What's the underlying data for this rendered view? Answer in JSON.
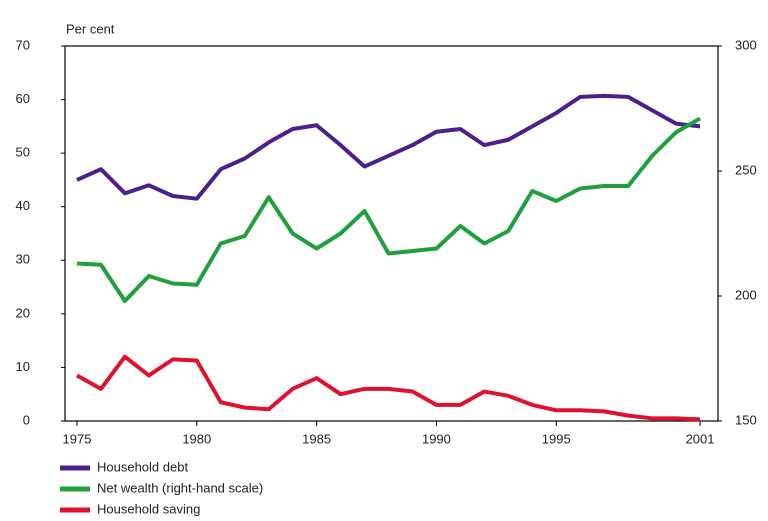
{
  "chart_data": {
    "type": "line",
    "y_label": "Per cent",
    "x": [
      1975,
      1976,
      1977,
      1978,
      1979,
      1980,
      1981,
      1982,
      1983,
      1984,
      1985,
      1986,
      1987,
      1988,
      1989,
      1990,
      1991,
      1992,
      1993,
      1994,
      1995,
      1996,
      1997,
      1998,
      1999,
      2000,
      2001
    ],
    "xlim": [
      1974.5,
      2001.75
    ],
    "xticks": [
      1975,
      1980,
      1985,
      1990,
      1995,
      2001
    ],
    "ylim": [
      0,
      70
    ],
    "yticks": [
      0,
      10,
      20,
      30,
      40,
      50,
      60,
      70
    ],
    "y2lim": [
      150,
      300
    ],
    "y2ticks": [
      150,
      200,
      250,
      300
    ],
    "legend": "bottom-left",
    "series": [
      {
        "name": "Household debt",
        "color": "#4b1f8c",
        "values": [
          45,
          47,
          42.5,
          44,
          42,
          41.5,
          47,
          49,
          52,
          54.5,
          55.2,
          51.5,
          47.5,
          49.5,
          51.5,
          54,
          54.5,
          51.5,
          52.5,
          55,
          57.5,
          60.5,
          60.7,
          60.5,
          58,
          55.5,
          55
        ]
      },
      {
        "name": "Net wealth (right-hand scale)",
        "color": "#1fa03c",
        "axis": "y2",
        "values": [
          213,
          212.5,
          198,
          208,
          205,
          204.5,
          221,
          224,
          239.5,
          225,
          219,
          225,
          234,
          217,
          218,
          219,
          228,
          221,
          226,
          242,
          238,
          243,
          244,
          244,
          256,
          265.5,
          271
        ]
      },
      {
        "name": "Household saving",
        "color": "#e0102f",
        "values": [
          8.5,
          6,
          12,
          8.5,
          11.5,
          11.3,
          3.5,
          2.5,
          2.2,
          6,
          8,
          5,
          6,
          6,
          5.5,
          3,
          3,
          5.5,
          4.7,
          3,
          2,
          2,
          1.8,
          1,
          0.5,
          0.5,
          0.3
        ]
      }
    ]
  }
}
